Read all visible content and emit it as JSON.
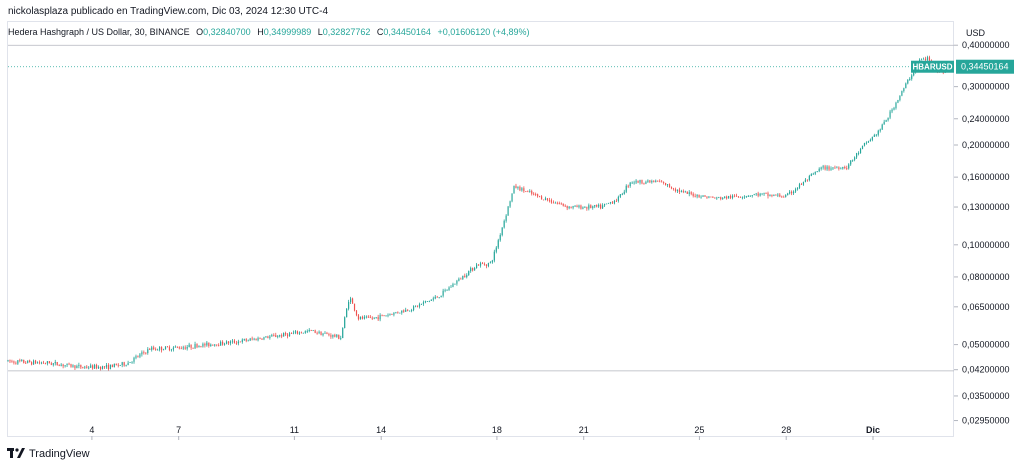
{
  "header": {
    "attribution": "nickolasplaza publicado en TradingView.com, Dic 03, 2024 12:30 UTC-4"
  },
  "legend": {
    "title": "Hedera Hashgraph / US Dollar, 30, BINANCE",
    "o_label": "O",
    "o": "0,32840700",
    "h_label": "H",
    "h": "0,34999989",
    "l_label": "L",
    "l": "0,32827762",
    "c_label": "C",
    "c": "0,34450164",
    "change": "+0,01606120 (+4,89%)"
  },
  "axis": {
    "currency": "USD"
  },
  "price_badge": {
    "symbol": "HBARUSD",
    "value": "0,34450164"
  },
  "footer": {
    "brand": "TradingView"
  },
  "chart_data": {
    "type": "candlestick",
    "symbol": "HBARUSD",
    "interval": "30",
    "exchange": "BINANCE",
    "y_scale": "log",
    "y_ticks": [
      "0,40000000",
      "0,30000000",
      "0,24000000",
      "0,20000000",
      "0,16000000",
      "0,13000000",
      "0,10000000",
      "0,08000000",
      "0,06500000",
      "0,05000000",
      "0,04200000",
      "0,03500000",
      "0,02950000"
    ],
    "y_tick_values": [
      0.4,
      0.3,
      0.24,
      0.2,
      0.16,
      0.13,
      0.1,
      0.08,
      0.065,
      0.05,
      0.042,
      0.035,
      0.0295
    ],
    "x_ticks": [
      "4",
      "7",
      "11",
      "14",
      "18",
      "21",
      "25",
      "28",
      "Dic"
    ],
    "x_tick_days": [
      4,
      7,
      11,
      14,
      18,
      21,
      25,
      28,
      31
    ],
    "x_range_days": [
      1.1,
      33.8
    ],
    "y_range": [
      0.0265,
      0.47
    ],
    "horizontal_lines": [
      0.4,
      0.04165
    ],
    "last_price": 0.34450164,
    "up_color": "#26a69a",
    "down_color": "#ef5350",
    "anchor_days": [
      1.1,
      2.5,
      3.6,
      4.5,
      5.2,
      6.0,
      7.0,
      8.0,
      9.0,
      10.3,
      11.6,
      12.6,
      12.9,
      13.2,
      13.7,
      15.0,
      16.0,
      17.3,
      17.8,
      18.0,
      18.6,
      19.4,
      20.5,
      21.6,
      22.2,
      22.6,
      23.6,
      24.5,
      25.6,
      26.3,
      27.0,
      28.0,
      29.2,
      30.1,
      30.7,
      31.2,
      31.6,
      32.1,
      32.6,
      32.9,
      33.3,
      33.8
    ],
    "anchor_prices": [
      0.0445,
      0.044,
      0.0428,
      0.0428,
      0.0438,
      0.0485,
      0.049,
      0.05,
      0.051,
      0.053,
      0.055,
      0.0525,
      0.07,
      0.06,
      0.06,
      0.064,
      0.07,
      0.087,
      0.088,
      0.1,
      0.15,
      0.14,
      0.13,
      0.13,
      0.138,
      0.155,
      0.155,
      0.143,
      0.138,
      0.14,
      0.142,
      0.14,
      0.17,
      0.172,
      0.2,
      0.22,
      0.25,
      0.3,
      0.36,
      0.365,
      0.33,
      0.3445
    ]
  }
}
